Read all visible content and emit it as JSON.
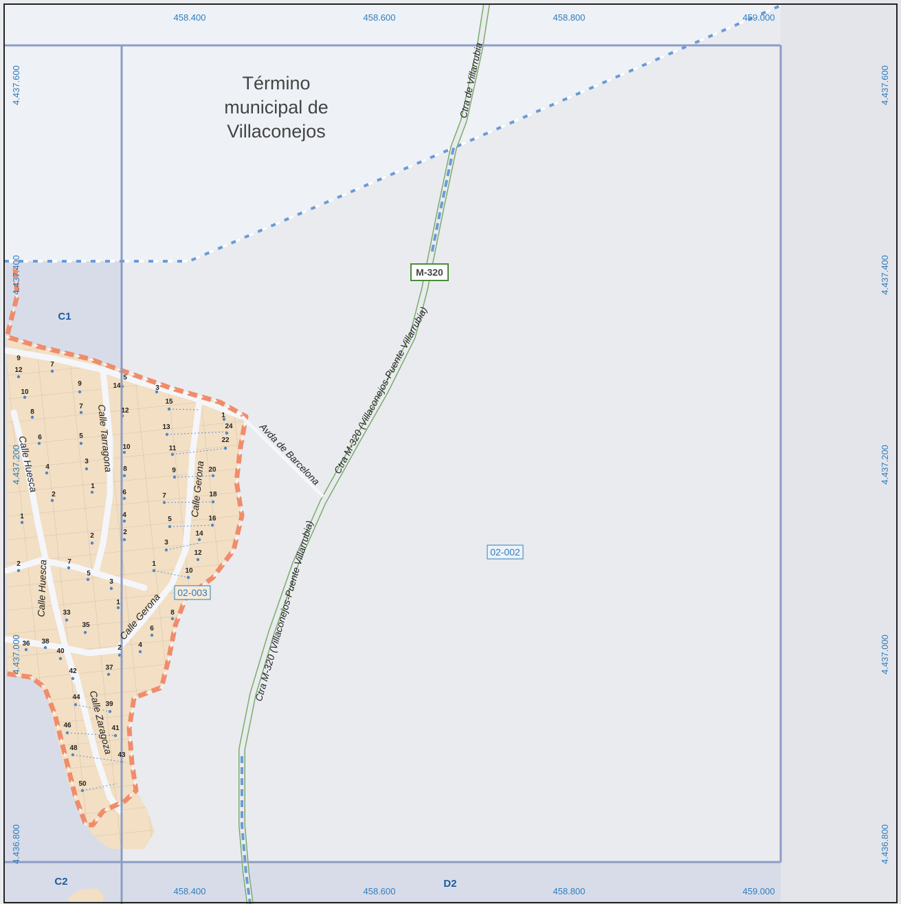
{
  "map": {
    "municipality_label": [
      "Término",
      "municipal de",
      "Villaconejos"
    ],
    "coords_x": [
      "458.400",
      "458.600",
      "458.800",
      "459.000"
    ],
    "coords_y": [
      "4.437.600",
      "4.437.400",
      "4.437.200",
      "4.437.000",
      "4.436.800"
    ],
    "sheet_labels": {
      "c1": "C1",
      "c2": "C2",
      "d2": "D2"
    },
    "zone_labels": {
      "main": "02-002",
      "urban": "02-003"
    },
    "road_shield": "M-320",
    "road_labels": {
      "villarrubia": "Ctra de Villarrubia",
      "m320_upper": "Ctra M-320 (Villaconejos-Puente Villarrubia)",
      "m320_mid": "Ctra M-320 (Villaconejos-Puente Villarrubia)",
      "m320_lower": "Ctra M-320 (Villaconejos-Puente Villarrubia)"
    },
    "streets": {
      "barcelona": "Avda de Barcelona",
      "tarragona": "Calle Tarragona",
      "gerona_upper": "Calle Gerona",
      "gerona_lower": "Calle Gerona",
      "huesca_upper": "Calle Huesca",
      "huesca_lower": "Calle Huesca",
      "zaragoza": "Calle Zaragoza"
    },
    "house_numbers": [
      "9",
      "12",
      "10",
      "8",
      "7",
      "9",
      "7",
      "5",
      "14",
      "3",
      "15",
      "12",
      "1",
      "24",
      "13",
      "6",
      "5",
      "22",
      "10",
      "11",
      "3",
      "4",
      "8",
      "9",
      "20",
      "2",
      "1",
      "6",
      "7",
      "18",
      "1",
      "4",
      "5",
      "16",
      "2",
      "14",
      "2",
      "3",
      "12",
      "7",
      "5",
      "1",
      "10",
      "3",
      "2",
      "33",
      "1",
      "8",
      "35",
      "6",
      "36",
      "38",
      "40",
      "2",
      "4",
      "42",
      "37",
      "44",
      "39",
      "46",
      "41",
      "48",
      "43",
      "50"
    ],
    "colors": {
      "background": "#e9ebef",
      "municipality_area": "#eef1f5",
      "neighbour_sheet": "#d8dce8",
      "grid_line": "#8c9cc4",
      "boundary_blue": "#6b9bd6",
      "urban_boundary": "#f08c6b",
      "urban_fill": "#f2dfc4",
      "road": "#7aab68",
      "coord_text": "#2e7dbf"
    }
  }
}
